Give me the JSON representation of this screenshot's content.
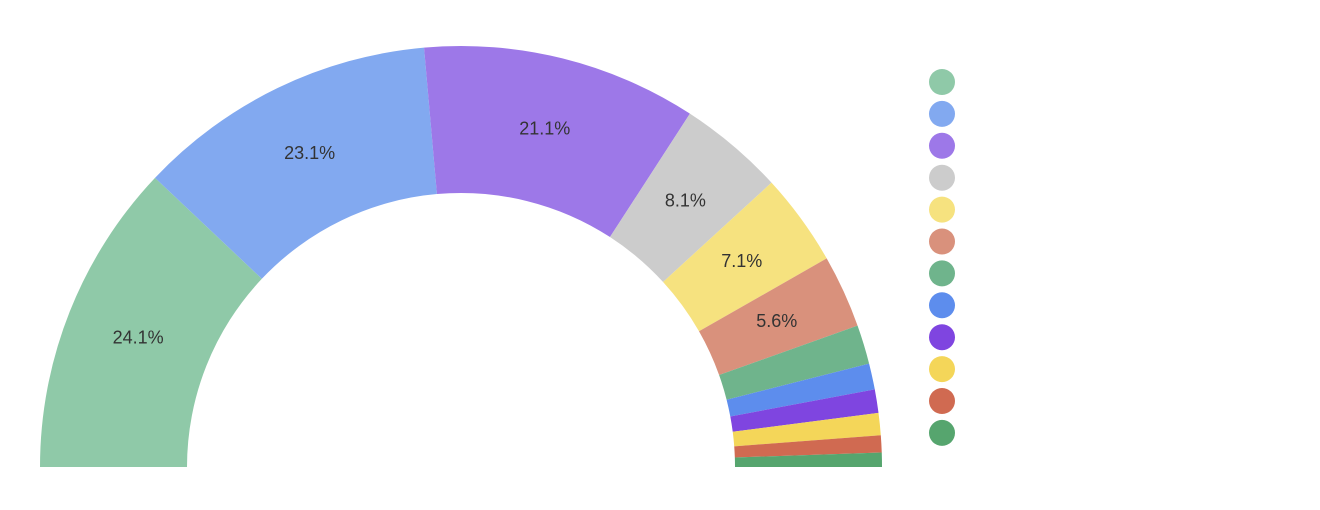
{
  "chart_data": {
    "type": "pie",
    "variant": "semi-donut",
    "start": "left",
    "legend_placement": "right",
    "legend_labels_visible": false,
    "slices": [
      {
        "value": 24.1,
        "label": "24.1%",
        "color": "#8fc9a8"
      },
      {
        "value": 23.1,
        "label": "23.1%",
        "color": "#82a9f0"
      },
      {
        "value": 21.1,
        "label": "21.1%",
        "color": "#9d78e8"
      },
      {
        "value": 8.1,
        "label": "8.1%",
        "color": "#cccccc"
      },
      {
        "value": 7.1,
        "label": "7.1%",
        "color": "#f6e27f"
      },
      {
        "value": 5.6,
        "label": "5.6%",
        "color": "#d9917c"
      },
      {
        "value": 3.0,
        "label": "",
        "color": "#6fb48c"
      },
      {
        "value": 2.0,
        "label": "",
        "color": "#5d8ded"
      },
      {
        "value": 1.8,
        "label": "",
        "color": "#7f45e0"
      },
      {
        "value": 1.7,
        "label": "",
        "color": "#f4d659"
      },
      {
        "value": 1.3,
        "label": "",
        "color": "#d06a51"
      },
      {
        "value": 1.1,
        "label": "",
        "color": "#56a56e"
      }
    ]
  }
}
